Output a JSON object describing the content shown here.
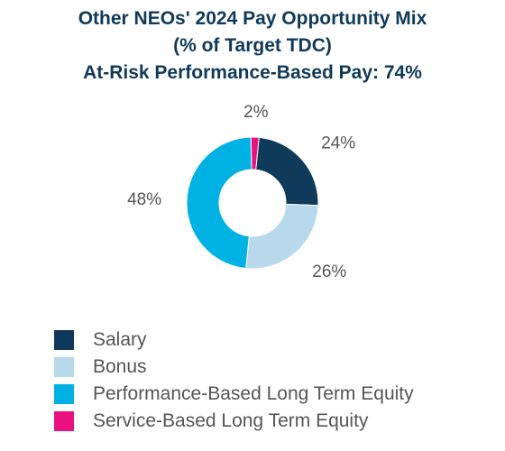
{
  "chart_data": {
    "type": "pie",
    "donut": true,
    "title_lines": [
      "Other NEOs' 2024 Pay Opportunity Mix",
      "(% of Target TDC)",
      "At-Risk Performance-Based Pay: 74%"
    ],
    "slices": [
      {
        "name": "Salary",
        "value": 24,
        "label": "24%",
        "color": "#0f3a5a"
      },
      {
        "name": "Bonus",
        "value": 26,
        "label": "26%",
        "color": "#b8d9ec"
      },
      {
        "name": "Performance-Based Long Term Equity",
        "value": 48,
        "label": "48%",
        "color": "#00b2e3"
      },
      {
        "name": "Service-Based Long Term Equity",
        "value": 2,
        "label": "2%",
        "color": "#e8117f"
      }
    ],
    "legend_position": "bottom-left"
  }
}
